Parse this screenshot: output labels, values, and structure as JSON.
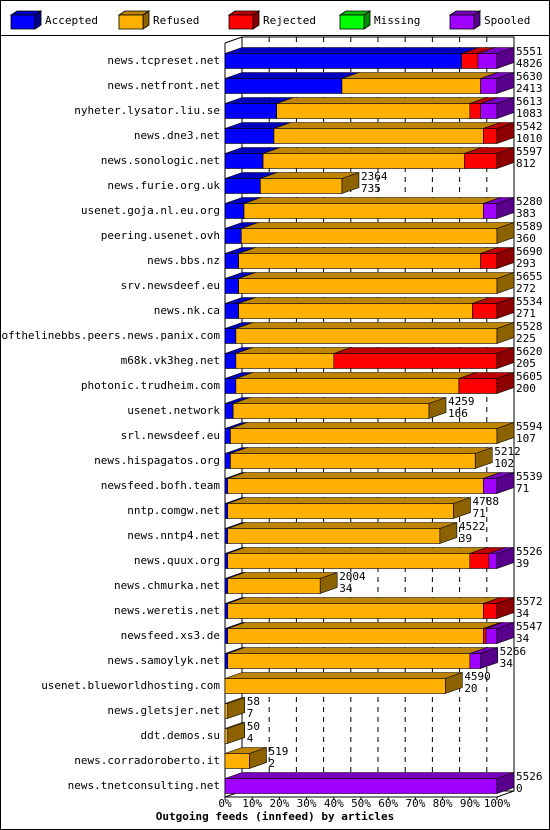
{
  "chart_data": {
    "type": "bar",
    "orientation": "horizontal",
    "stacked": true,
    "xlabel": "Outgoing feeds (innfeed) by articles",
    "xlim": [
      0,
      100
    ],
    "x_ticks": [
      "0%",
      "10%",
      "20%",
      "30%",
      "40%",
      "50%",
      "60%",
      "70%",
      "80%",
      "90%",
      "100%"
    ],
    "legend": {
      "position": "top",
      "entries": [
        {
          "name": "Accepted",
          "color": "#0000ff"
        },
        {
          "name": "Refused",
          "color": "#ffb000"
        },
        {
          "name": "Rejected",
          "color": "#ff0000"
        },
        {
          "name": "Missing",
          "color": "#00ff00"
        },
        {
          "name": "Spooled",
          "color": "#a000ff"
        }
      ]
    },
    "columns": [
      "Accepted",
      "Refused",
      "Rejected",
      "Missing",
      "Spooled"
    ],
    "rows": [
      {
        "name": "news.tcpreset.net",
        "total": "5551",
        "accepted": "4826",
        "segments": [
          87,
          0,
          6,
          0,
          7
        ],
        "scale": 100
      },
      {
        "name": "news.netfront.net",
        "total": "5630",
        "accepted": "2413",
        "segments": [
          43,
          51,
          0,
          0,
          6
        ],
        "scale": 100
      },
      {
        "name": "nyheter.lysator.liu.se",
        "total": "5613",
        "accepted": "1083",
        "segments": [
          19,
          71,
          4,
          0,
          6
        ],
        "scale": 100
      },
      {
        "name": "news.dne3.net",
        "total": "5542",
        "accepted": "1010",
        "segments": [
          18,
          77,
          5,
          0,
          0
        ],
        "scale": 100
      },
      {
        "name": "news.sonologic.net",
        "total": "5597",
        "accepted": "812",
        "segments": [
          14,
          74,
          12,
          0,
          0
        ],
        "scale": 100
      },
      {
        "name": "news.furie.org.uk",
        "total": "2364",
        "accepted": "735",
        "segments": [
          13,
          30,
          0,
          0,
          0
        ],
        "scale": 100
      },
      {
        "name": "usenet.goja.nl.eu.org",
        "total": "5280",
        "accepted": "383",
        "segments": [
          7,
          88,
          0,
          0,
          5
        ],
        "scale": 100
      },
      {
        "name": "peering.usenet.ovh",
        "total": "5589",
        "accepted": "360",
        "segments": [
          6,
          94,
          0,
          0,
          0
        ],
        "scale": 100
      },
      {
        "name": "news.bbs.nz",
        "total": "5690",
        "accepted": "293",
        "segments": [
          5,
          89,
          6,
          0,
          0
        ],
        "scale": 100
      },
      {
        "name": "srv.newsdeef.eu",
        "total": "5655",
        "accepted": "272",
        "segments": [
          5,
          95,
          0,
          0,
          0
        ],
        "scale": 100
      },
      {
        "name": "news.nk.ca",
        "total": "5534",
        "accepted": "271",
        "segments": [
          5,
          86,
          9,
          0,
          0
        ],
        "scale": 100
      },
      {
        "name": "endofthelinebbs.peers.news.panix.com",
        "total": "5528",
        "accepted": "225",
        "segments": [
          4,
          96,
          0,
          0,
          0
        ],
        "scale": 100
      },
      {
        "name": "m68k.vk3heg.net",
        "total": "5620",
        "accepted": "205",
        "segments": [
          4,
          36,
          60,
          0,
          0
        ],
        "scale": 100
      },
      {
        "name": "photonic.trudheim.com",
        "total": "5605",
        "accepted": "200",
        "segments": [
          4,
          82,
          14,
          0,
          0
        ],
        "scale": 100
      },
      {
        "name": "usenet.network",
        "total": "4259",
        "accepted": "166",
        "segments": [
          3,
          72,
          0,
          0,
          0
        ],
        "scale": 100
      },
      {
        "name": "srl.newsdeef.eu",
        "total": "5594",
        "accepted": "107",
        "segments": [
          2,
          98,
          0,
          0,
          0
        ],
        "scale": 100
      },
      {
        "name": "news.hispagatos.org",
        "total": "5212",
        "accepted": "102",
        "segments": [
          2,
          90,
          0,
          0,
          0
        ],
        "scale": 100
      },
      {
        "name": "newsfeed.bofh.team",
        "total": "5539",
        "accepted": "71",
        "segments": [
          1,
          94,
          0,
          0,
          5
        ],
        "scale": 100
      },
      {
        "name": "nntp.comgw.net",
        "total": "4788",
        "accepted": "71",
        "segments": [
          1,
          83,
          0,
          0,
          0
        ],
        "scale": 100
      },
      {
        "name": "news.nntp4.net",
        "total": "4522",
        "accepted": "39",
        "segments": [
          1,
          78,
          0,
          0,
          0
        ],
        "scale": 100
      },
      {
        "name": "news.quux.org",
        "total": "5526",
        "accepted": "39",
        "segments": [
          1,
          89,
          7,
          0,
          3
        ],
        "scale": 100
      },
      {
        "name": "news.chmurka.net",
        "total": "2004",
        "accepted": "34",
        "segments": [
          1,
          34,
          0,
          0,
          0
        ],
        "scale": 100
      },
      {
        "name": "news.weretis.net",
        "total": "5572",
        "accepted": "34",
        "segments": [
          1,
          94,
          5,
          0,
          0
        ],
        "scale": 100
      },
      {
        "name": "newsfeed.xs3.de",
        "total": "5547",
        "accepted": "34",
        "segments": [
          1,
          94,
          1,
          0,
          4
        ],
        "scale": 100
      },
      {
        "name": "news.samoylyk.net",
        "total": "5266",
        "accepted": "34",
        "segments": [
          1,
          89,
          0,
          0,
          4
        ],
        "scale": 100
      },
      {
        "name": "usenet.blueworldhosting.com",
        "total": "4590",
        "accepted": "20",
        "segments": [
          0,
          81,
          0,
          0,
          0
        ],
        "scale": 100
      },
      {
        "name": "news.gletsjer.net",
        "total": "58",
        "accepted": "7",
        "segments": [
          0,
          1,
          0,
          0,
          0
        ],
        "scale": 100
      },
      {
        "name": "ddt.demos.su",
        "total": "50",
        "accepted": "4",
        "segments": [
          0,
          1,
          0,
          0,
          0
        ],
        "scale": 100
      },
      {
        "name": "news.corradoroberto.it",
        "total": "519",
        "accepted": "2",
        "segments": [
          0,
          9,
          0,
          0,
          0
        ],
        "scale": 100
      },
      {
        "name": "news.tnetconsulting.net",
        "total": "5526",
        "accepted": "0",
        "segments": [
          0,
          0,
          0,
          0,
          100
        ],
        "scale": 100
      }
    ]
  }
}
